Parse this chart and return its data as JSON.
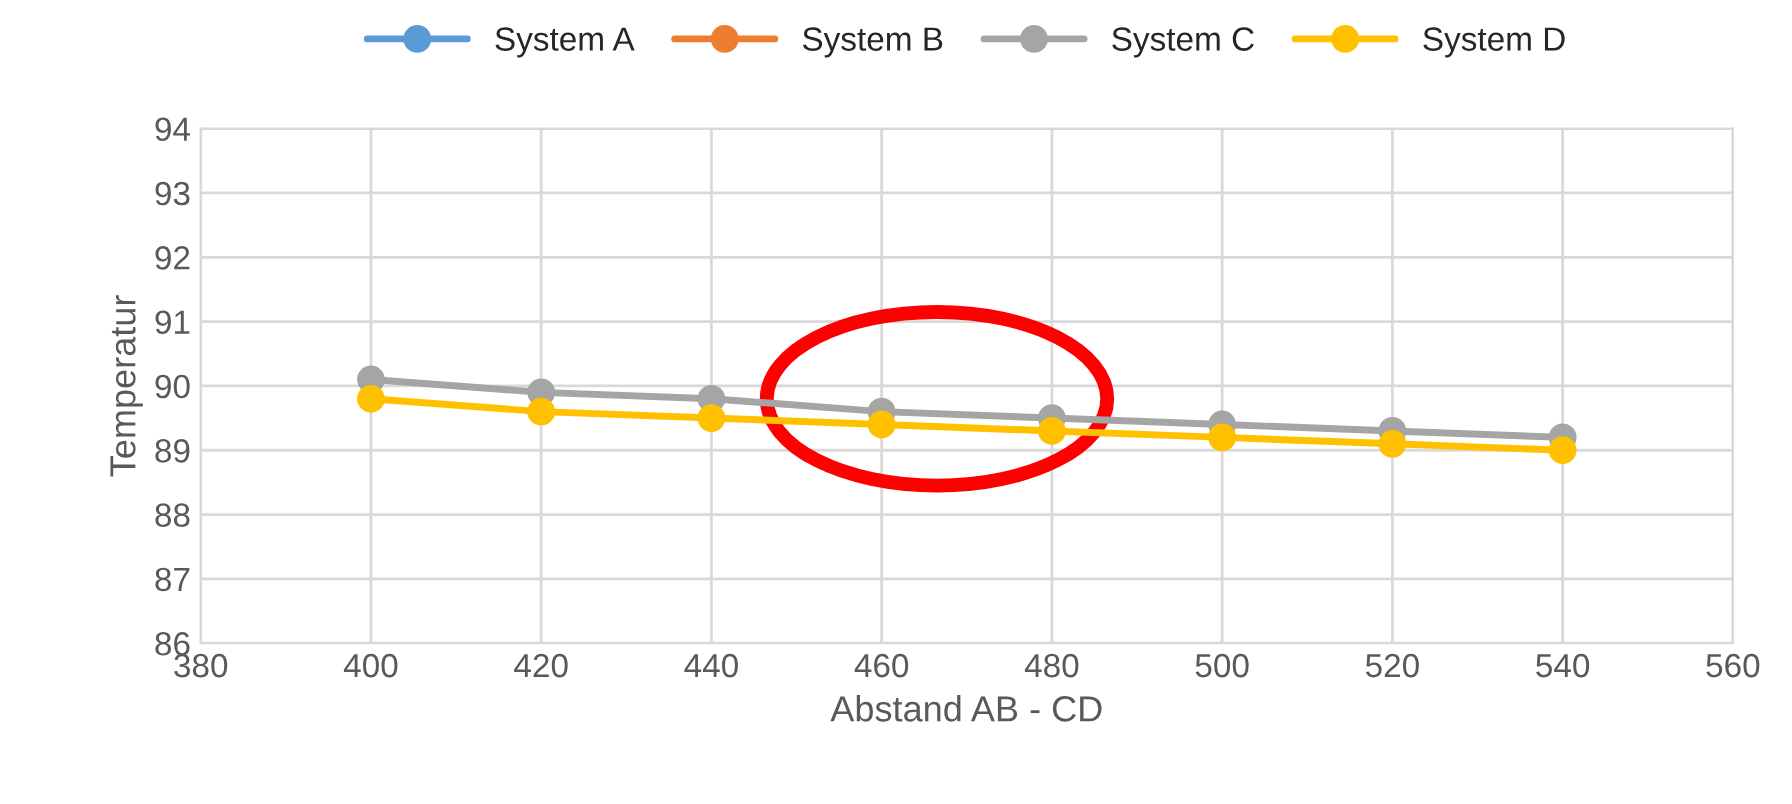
{
  "chart_data": {
    "type": "line",
    "xlabel": "Abstand AB - CD",
    "ylabel": "Temperatur",
    "x": [
      400,
      420,
      440,
      460,
      480,
      500,
      520,
      540
    ],
    "series": [
      {
        "name": "System A",
        "color": "#5b9bd5",
        "values": [
          null,
          null,
          null,
          null,
          null,
          null,
          null,
          null
        ]
      },
      {
        "name": "System B",
        "color": "#ed7d31",
        "values": [
          null,
          null,
          null,
          null,
          null,
          null,
          null,
          null
        ]
      },
      {
        "name": "System C",
        "color": "#a5a5a5",
        "values": [
          90.1,
          89.9,
          89.8,
          89.6,
          89.5,
          89.4,
          89.3,
          89.2
        ]
      },
      {
        "name": "System D",
        "color": "#ffc000",
        "values": [
          89.8,
          89.6,
          89.5,
          89.4,
          89.3,
          89.2,
          89.1,
          89.0
        ]
      }
    ],
    "xlim": [
      380,
      560
    ],
    "xticks": [
      380,
      400,
      420,
      440,
      460,
      480,
      500,
      520,
      540,
      560
    ],
    "ylim": [
      86,
      94
    ],
    "yticks": [
      86,
      87,
      88,
      89,
      90,
      91,
      92,
      93,
      94
    ],
    "grid": true,
    "legend": "top",
    "marker": "circle",
    "line_style": "solid"
  }
}
